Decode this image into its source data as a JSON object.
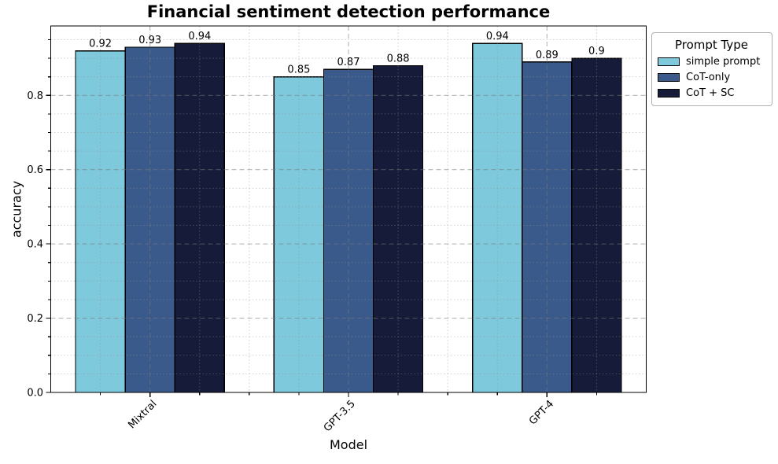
{
  "chart_data": {
    "type": "bar",
    "title": "Financial sentiment detection performance",
    "xlabel": "Model",
    "ylabel": "accuracy",
    "categories": [
      "Mixtral",
      "GPT-3.5",
      "GPT-4"
    ],
    "series": [
      {
        "name": "simple prompt",
        "color": "#7EC9DC",
        "values": [
          0.92,
          0.85,
          0.94
        ],
        "value_labels": [
          "0.92",
          "0.85",
          "0.94"
        ]
      },
      {
        "name": "CoT-only",
        "color": "#3A5A8C",
        "values": [
          0.93,
          0.87,
          0.89
        ],
        "value_labels": [
          "0.93",
          "0.87",
          "0.89"
        ]
      },
      {
        "name": "CoT + SC",
        "color": "#151B38",
        "values": [
          0.94,
          0.88,
          0.9
        ],
        "value_labels": [
          "0.94",
          "0.88",
          "0.9"
        ]
      }
    ],
    "ylim": [
      0,
      0.987
    ],
    "xlim": [
      -0.5,
      2.5
    ],
    "yticks": [
      0,
      0.2,
      0.4,
      0.6,
      0.8
    ],
    "ytick_labels": [
      "0.0",
      "0.2",
      "0.4",
      "0.6",
      "0.8"
    ],
    "y_minor_step": 0.05,
    "x_minor_step": 0.25,
    "grid": "major dashed + minor dotted, drawn over bars",
    "legend_position": "outside upper right",
    "bar_edge_color": "#000000",
    "bar_group_width": 0.75
  },
  "legend": {
    "title": "Prompt Type",
    "items": [
      {
        "label": "simple prompt",
        "color": "#7EC9DC"
      },
      {
        "label": "CoT-only",
        "color": "#3A5A8C"
      },
      {
        "label": "CoT + SC",
        "color": "#151B38"
      }
    ]
  },
  "colors": {
    "grid_major": "rgba(120,120,120,0.55)",
    "grid_minor": "rgba(145,145,145,0.42)",
    "spine": "#000000",
    "text": "#000000"
  }
}
